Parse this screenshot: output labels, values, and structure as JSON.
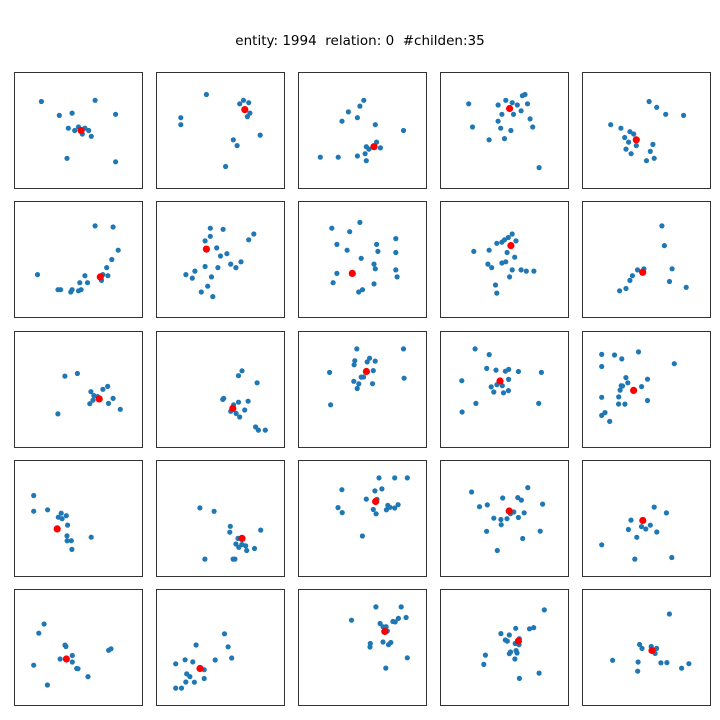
{
  "title": "entity: 1994  relation: 0  #childen:35",
  "colors": {
    "points": "#1f77b4",
    "center": "#ff0000",
    "frame": "#000000"
  },
  "chart_data": {
    "type": "scatter",
    "grid": false,
    "rows": 5,
    "cols": 5,
    "xlim": [
      0,
      1
    ],
    "ylim": [
      0,
      1
    ],
    "panels": [
      {
        "center": [
          0.52,
          0.5
        ],
        "points": [
          [
            0.21,
            0.75
          ],
          [
            0.35,
            0.63
          ],
          [
            0.45,
            0.65
          ],
          [
            0.63,
            0.76
          ],
          [
            0.79,
            0.64
          ],
          [
            0.42,
            0.52
          ],
          [
            0.47,
            0.5
          ],
          [
            0.5,
            0.53
          ],
          [
            0.53,
            0.47
          ],
          [
            0.55,
            0.52
          ],
          [
            0.58,
            0.5
          ],
          [
            0.6,
            0.45
          ],
          [
            0.41,
            0.26
          ],
          [
            0.79,
            0.23
          ]
        ]
      },
      {
        "center": [
          0.69,
          0.68
        ],
        "points": [
          [
            0.39,
            0.81
          ],
          [
            0.19,
            0.61
          ],
          [
            0.19,
            0.55
          ],
          [
            0.65,
            0.73
          ],
          [
            0.68,
            0.76
          ],
          [
            0.72,
            0.74
          ],
          [
            0.73,
            0.65
          ],
          [
            0.71,
            0.62
          ],
          [
            0.6,
            0.42
          ],
          [
            0.63,
            0.37
          ],
          [
            0.81,
            0.46
          ],
          [
            0.54,
            0.19
          ]
        ]
      },
      {
        "center": [
          0.59,
          0.36
        ],
        "points": [
          [
            0.39,
            0.66
          ],
          [
            0.48,
            0.71
          ],
          [
            0.51,
            0.76
          ],
          [
            0.34,
            0.58
          ],
          [
            0.46,
            0.61
          ],
          [
            0.6,
            0.55
          ],
          [
            0.55,
            0.34
          ],
          [
            0.61,
            0.4
          ],
          [
            0.64,
            0.35
          ],
          [
            0.53,
            0.36
          ],
          [
            0.82,
            0.5
          ],
          [
            0.46,
            0.28
          ],
          [
            0.52,
            0.3
          ],
          [
            0.53,
            0.24
          ],
          [
            0.17,
            0.27
          ],
          [
            0.31,
            0.27
          ]
        ]
      },
      {
        "center": [
          0.54,
          0.69
        ],
        "points": [
          [
            0.22,
            0.73
          ],
          [
            0.45,
            0.72
          ],
          [
            0.51,
            0.76
          ],
          [
            0.56,
            0.74
          ],
          [
            0.6,
            0.72
          ],
          [
            0.64,
            0.8
          ],
          [
            0.66,
            0.81
          ],
          [
            0.68,
            0.73
          ],
          [
            0.48,
            0.64
          ],
          [
            0.57,
            0.64
          ],
          [
            0.63,
            0.67
          ],
          [
            0.7,
            0.6
          ],
          [
            0.25,
            0.53
          ],
          [
            0.45,
            0.58
          ],
          [
            0.47,
            0.52
          ],
          [
            0.55,
            0.5
          ],
          [
            0.72,
            0.53
          ],
          [
            0.38,
            0.42
          ],
          [
            0.5,
            0.43
          ],
          [
            0.77,
            0.18
          ]
        ]
      },
      {
        "center": [
          0.42,
          0.42
        ],
        "points": [
          [
            0.22,
            0.55
          ],
          [
            0.3,
            0.52
          ],
          [
            0.37,
            0.49
          ],
          [
            0.4,
            0.47
          ],
          [
            0.33,
            0.44
          ],
          [
            0.36,
            0.4
          ],
          [
            0.42,
            0.37
          ],
          [
            0.34,
            0.34
          ],
          [
            0.38,
            0.3
          ],
          [
            0.55,
            0.38
          ],
          [
            0.53,
            0.32
          ],
          [
            0.56,
            0.26
          ],
          [
            0.5,
            0.24
          ],
          [
            0.52,
            0.75
          ],
          [
            0.58,
            0.7
          ],
          [
            0.79,
            0.63
          ],
          [
            0.65,
            0.64
          ]
        ]
      },
      {
        "center": [
          0.67,
          0.35
        ],
        "points": [
          [
            0.63,
            0.79
          ],
          [
            0.77,
            0.78
          ],
          [
            0.81,
            0.58
          ],
          [
            0.76,
            0.5
          ],
          [
            0.72,
            0.43
          ],
          [
            0.73,
            0.36
          ],
          [
            0.69,
            0.37
          ],
          [
            0.55,
            0.36
          ],
          [
            0.68,
            0.32
          ],
          [
            0.57,
            0.3
          ],
          [
            0.51,
            0.3
          ],
          [
            0.52,
            0.24
          ],
          [
            0.5,
            0.23
          ],
          [
            0.45,
            0.24
          ],
          [
            0.44,
            0.22
          ],
          [
            0.36,
            0.24
          ],
          [
            0.34,
            0.24
          ],
          [
            0.18,
            0.37
          ]
        ]
      },
      {
        "center": [
          0.39,
          0.59
        ],
        "points": [
          [
            0.42,
            0.77
          ],
          [
            0.42,
            0.7
          ],
          [
            0.52,
            0.76
          ],
          [
            0.72,
            0.67
          ],
          [
            0.76,
            0.72
          ],
          [
            0.38,
            0.66
          ],
          [
            0.47,
            0.6
          ],
          [
            0.55,
            0.55
          ],
          [
            0.5,
            0.53
          ],
          [
            0.58,
            0.46
          ],
          [
            0.66,
            0.48
          ],
          [
            0.38,
            0.44
          ],
          [
            0.48,
            0.43
          ],
          [
            0.3,
            0.4
          ],
          [
            0.23,
            0.37
          ],
          [
            0.28,
            0.34
          ],
          [
            0.43,
            0.35
          ],
          [
            0.4,
            0.27
          ],
          [
            0.35,
            0.22
          ],
          [
            0.44,
            0.18
          ],
          [
            0.62,
            0.43
          ]
        ]
      },
      {
        "center": [
          0.42,
          0.38
        ],
        "points": [
          [
            0.26,
            0.77
          ],
          [
            0.48,
            0.82
          ],
          [
            0.4,
            0.74
          ],
          [
            0.3,
            0.63
          ],
          [
            0.38,
            0.58
          ],
          [
            0.49,
            0.51
          ],
          [
            0.61,
            0.63
          ],
          [
            0.62,
            0.57
          ],
          [
            0.76,
            0.68
          ],
          [
            0.76,
            0.56
          ],
          [
            0.59,
            0.46
          ],
          [
            0.6,
            0.42
          ],
          [
            0.76,
            0.41
          ],
          [
            0.77,
            0.35
          ],
          [
            0.3,
            0.38
          ],
          [
            0.27,
            0.3
          ],
          [
            0.59,
            0.29
          ],
          [
            0.47,
            0.22
          ],
          [
            0.5,
            0.24
          ]
        ]
      },
      {
        "center": [
          0.55,
          0.62
        ],
        "points": [
          [
            0.26,
            0.57
          ],
          [
            0.38,
            0.58
          ],
          [
            0.44,
            0.64
          ],
          [
            0.48,
            0.65
          ],
          [
            0.5,
            0.67
          ],
          [
            0.53,
            0.69
          ],
          [
            0.56,
            0.72
          ],
          [
            0.59,
            0.66
          ],
          [
            0.52,
            0.56
          ],
          [
            0.58,
            0.52
          ],
          [
            0.37,
            0.46
          ],
          [
            0.4,
            0.43
          ],
          [
            0.48,
            0.47
          ],
          [
            0.51,
            0.48
          ],
          [
            0.56,
            0.41
          ],
          [
            0.63,
            0.41
          ],
          [
            0.67,
            0.4
          ],
          [
            0.73,
            0.4
          ],
          [
            0.54,
            0.35
          ],
          [
            0.43,
            0.28
          ],
          [
            0.44,
            0.21
          ]
        ]
      },
      {
        "center": [
          0.47,
          0.39
        ],
        "points": [
          [
            0.62,
            0.79
          ],
          [
            0.64,
            0.62
          ],
          [
            0.48,
            0.42
          ],
          [
            0.43,
            0.41
          ],
          [
            0.39,
            0.36
          ],
          [
            0.37,
            0.32
          ],
          [
            0.7,
            0.42
          ],
          [
            0.34,
            0.25
          ],
          [
            0.29,
            0.23
          ],
          [
            0.68,
            0.31
          ],
          [
            0.81,
            0.26
          ]
        ]
      }
    ]
  }
}
